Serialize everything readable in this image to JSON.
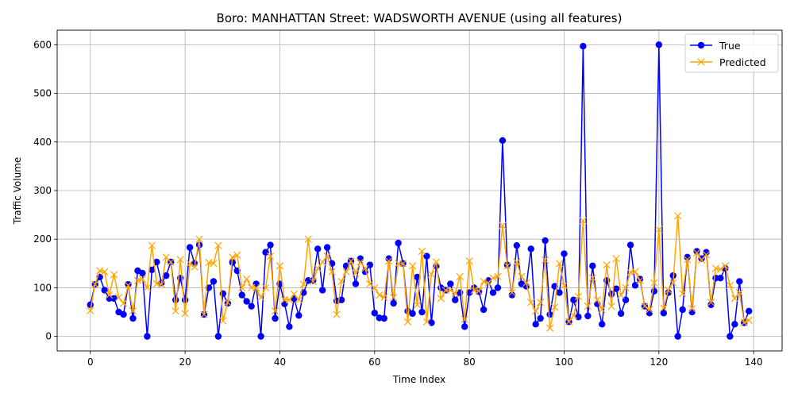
{
  "chart_data": {
    "type": "line",
    "title": "Boro: MANHATTAN Street: WADSWORTH AVENUE (using all features)",
    "xlabel": "Time Index",
    "ylabel": "Traffic Volume",
    "xlim": [
      -7,
      146
    ],
    "ylim": [
      -30,
      630
    ],
    "xticks": [
      0,
      20,
      40,
      60,
      80,
      100,
      120,
      140
    ],
    "yticks": [
      0,
      100,
      200,
      300,
      400,
      500,
      600
    ],
    "grid": true,
    "legend_position": "top-right",
    "series": [
      {
        "name": "True",
        "color": "#0000ff",
        "marker": "circle",
        "values": [
          65,
          107,
          122,
          95,
          78,
          78,
          50,
          45,
          107,
          37,
          135,
          130,
          0,
          137,
          153,
          110,
          125,
          153,
          75,
          120,
          75,
          183,
          150,
          188,
          45,
          100,
          113,
          0,
          88,
          68,
          152,
          135,
          85,
          72,
          62,
          108,
          0,
          173,
          188,
          37,
          108,
          67,
          20,
          78,
          43,
          90,
          115,
          115,
          180,
          95,
          183,
          150,
          73,
          75,
          145,
          155,
          108,
          160,
          133,
          147,
          48,
          38,
          37,
          160,
          68,
          192,
          150,
          52,
          47,
          122,
          50,
          165,
          28,
          145,
          100,
          95,
          108,
          75,
          90,
          20,
          90,
          100,
          92,
          55,
          115,
          90,
          100,
          403,
          147,
          85,
          187,
          108,
          103,
          180,
          25,
          37,
          197,
          45,
          103,
          90,
          170,
          30,
          75,
          40,
          597,
          42,
          145,
          67,
          25,
          115,
          87,
          98,
          47,
          75,
          188,
          105,
          118,
          62,
          48,
          93,
          600,
          48,
          90,
          125,
          0,
          55,
          163,
          50,
          175,
          160,
          173,
          65,
          120,
          120,
          140,
          0,
          25,
          113,
          28,
          52
        ]
      },
      {
        "name": "Predicted",
        "color": "#ffa500",
        "marker": "x",
        "values": [
          53,
          107,
          135,
          133,
          85,
          127,
          80,
          68,
          105,
          52,
          115,
          118,
          100,
          187,
          108,
          107,
          163,
          153,
          52,
          158,
          47,
          150,
          143,
          200,
          45,
          152,
          150,
          187,
          32,
          70,
          163,
          167,
          100,
          118,
          100,
          100,
          80,
          100,
          165,
          52,
          145,
          75,
          75,
          87,
          75,
          107,
          200,
          113,
          140,
          153,
          165,
          133,
          45,
          113,
          133,
          155,
          130,
          153,
          140,
          108,
          100,
          85,
          80,
          155,
          80,
          150,
          150,
          30,
          145,
          65,
          175,
          30,
          128,
          153,
          78,
          95,
          95,
          88,
          123,
          35,
          155,
          95,
          93,
          113,
          110,
          120,
          123,
          228,
          145,
          90,
          153,
          123,
          110,
          70,
          52,
          70,
          157,
          17,
          60,
          150,
          105,
          30,
          43,
          82,
          238,
          62,
          120,
          75,
          55,
          147,
          62,
          160,
          85,
          100,
          132,
          133,
          115,
          62,
          55,
          110,
          220,
          58,
          95,
          110,
          248,
          88,
          158,
          57,
          172,
          157,
          168,
          70,
          140,
          138,
          145,
          105,
          78,
          90,
          28,
          33
        ]
      }
    ]
  }
}
